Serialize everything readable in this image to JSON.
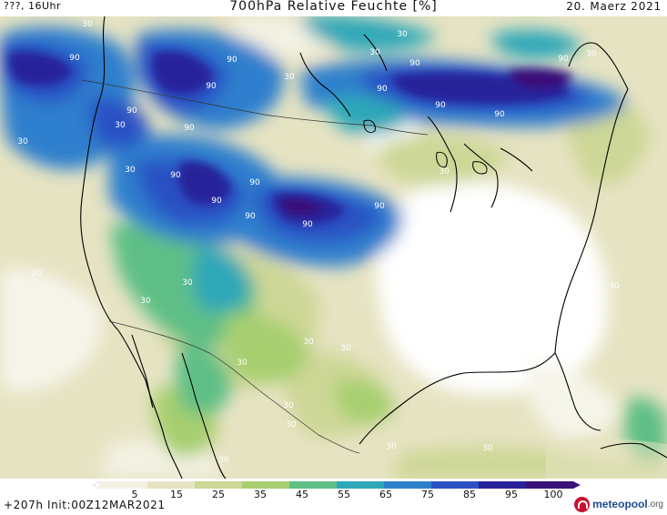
{
  "header": {
    "left": "???, 16Uhr",
    "title": "700hPa Relative Feuchte [%]",
    "right": "20. Maerz 2021"
  },
  "footer": {
    "run": "+207h  Init:00Z12MAR2021",
    "logo_text": "meteopool",
    "logo_suffix": ".org"
  },
  "legend": {
    "labels": [
      "5",
      "15",
      "25",
      "35",
      "45",
      "55",
      "65",
      "75",
      "85",
      "95",
      "100"
    ],
    "colors": [
      "#ffffff",
      "#f3f1e2",
      "#e6e3c2",
      "#cdd796",
      "#a7cf6f",
      "#5fbf86",
      "#2ea7b8",
      "#2f7fcd",
      "#2c51c4",
      "#26239a",
      "#3a1178"
    ]
  },
  "contour_labels": [
    "90",
    "90",
    "90",
    "90",
    "90",
    "90",
    "90",
    "90",
    "90",
    "90",
    "90",
    "90",
    "90",
    "90",
    "90",
    "90",
    "30",
    "30",
    "30",
    "30",
    "30",
    "30",
    "30",
    "30",
    "30",
    "30",
    "30",
    "30",
    "30",
    "30",
    "30",
    "30",
    "30",
    "30",
    "30",
    "30",
    "30"
  ]
}
